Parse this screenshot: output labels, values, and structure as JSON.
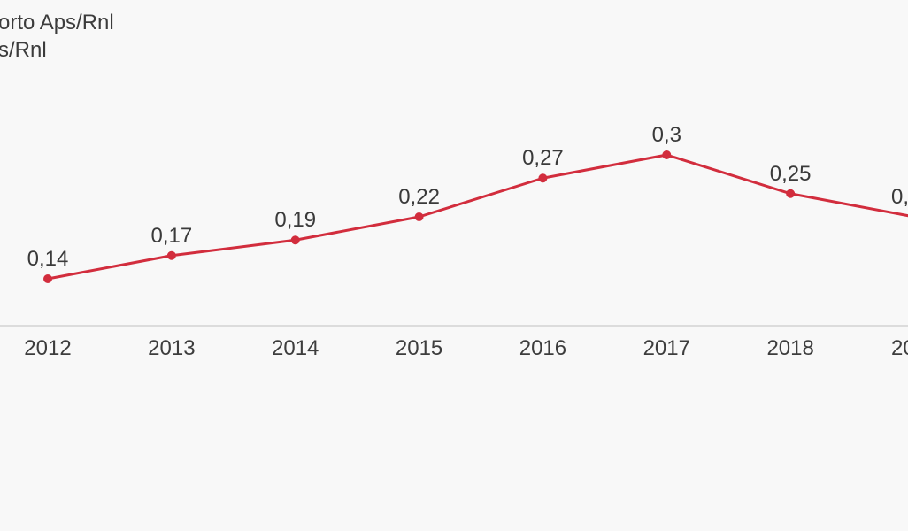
{
  "title": {
    "line1": "orto Aps/Rnl",
    "line2": "s/Rnl"
  },
  "colors": {
    "background": "#f8f8f8",
    "series_line": "#d22d3d",
    "axis_line": "#dcdcdc",
    "label_text": "#3a3a3a",
    "tick_text": "#3d3d3d",
    "title_text": "#3c3c3c"
  },
  "chart_data": {
    "type": "line",
    "title_visible": [
      "orto Aps/Rnl",
      "s/Rnl"
    ],
    "categories": [
      "2012",
      "2013",
      "2014",
      "2015",
      "2016",
      "2017",
      "2018",
      "20"
    ],
    "values": [
      0.14,
      0.17,
      0.19,
      0.22,
      0.27,
      0.3,
      0.25,
      0.22
    ],
    "point_labels": [
      "0,14",
      "0,17",
      "0,19",
      "0,22",
      "0,27",
      "0,3",
      "0,25",
      "0,"
    ],
    "line_color": "#d22d3d",
    "marker": "dot",
    "grid": false,
    "legend": false,
    "y_axis_labels": false,
    "cropped_left": true,
    "cropped_right": true,
    "xlabel": "",
    "ylabel": ""
  }
}
